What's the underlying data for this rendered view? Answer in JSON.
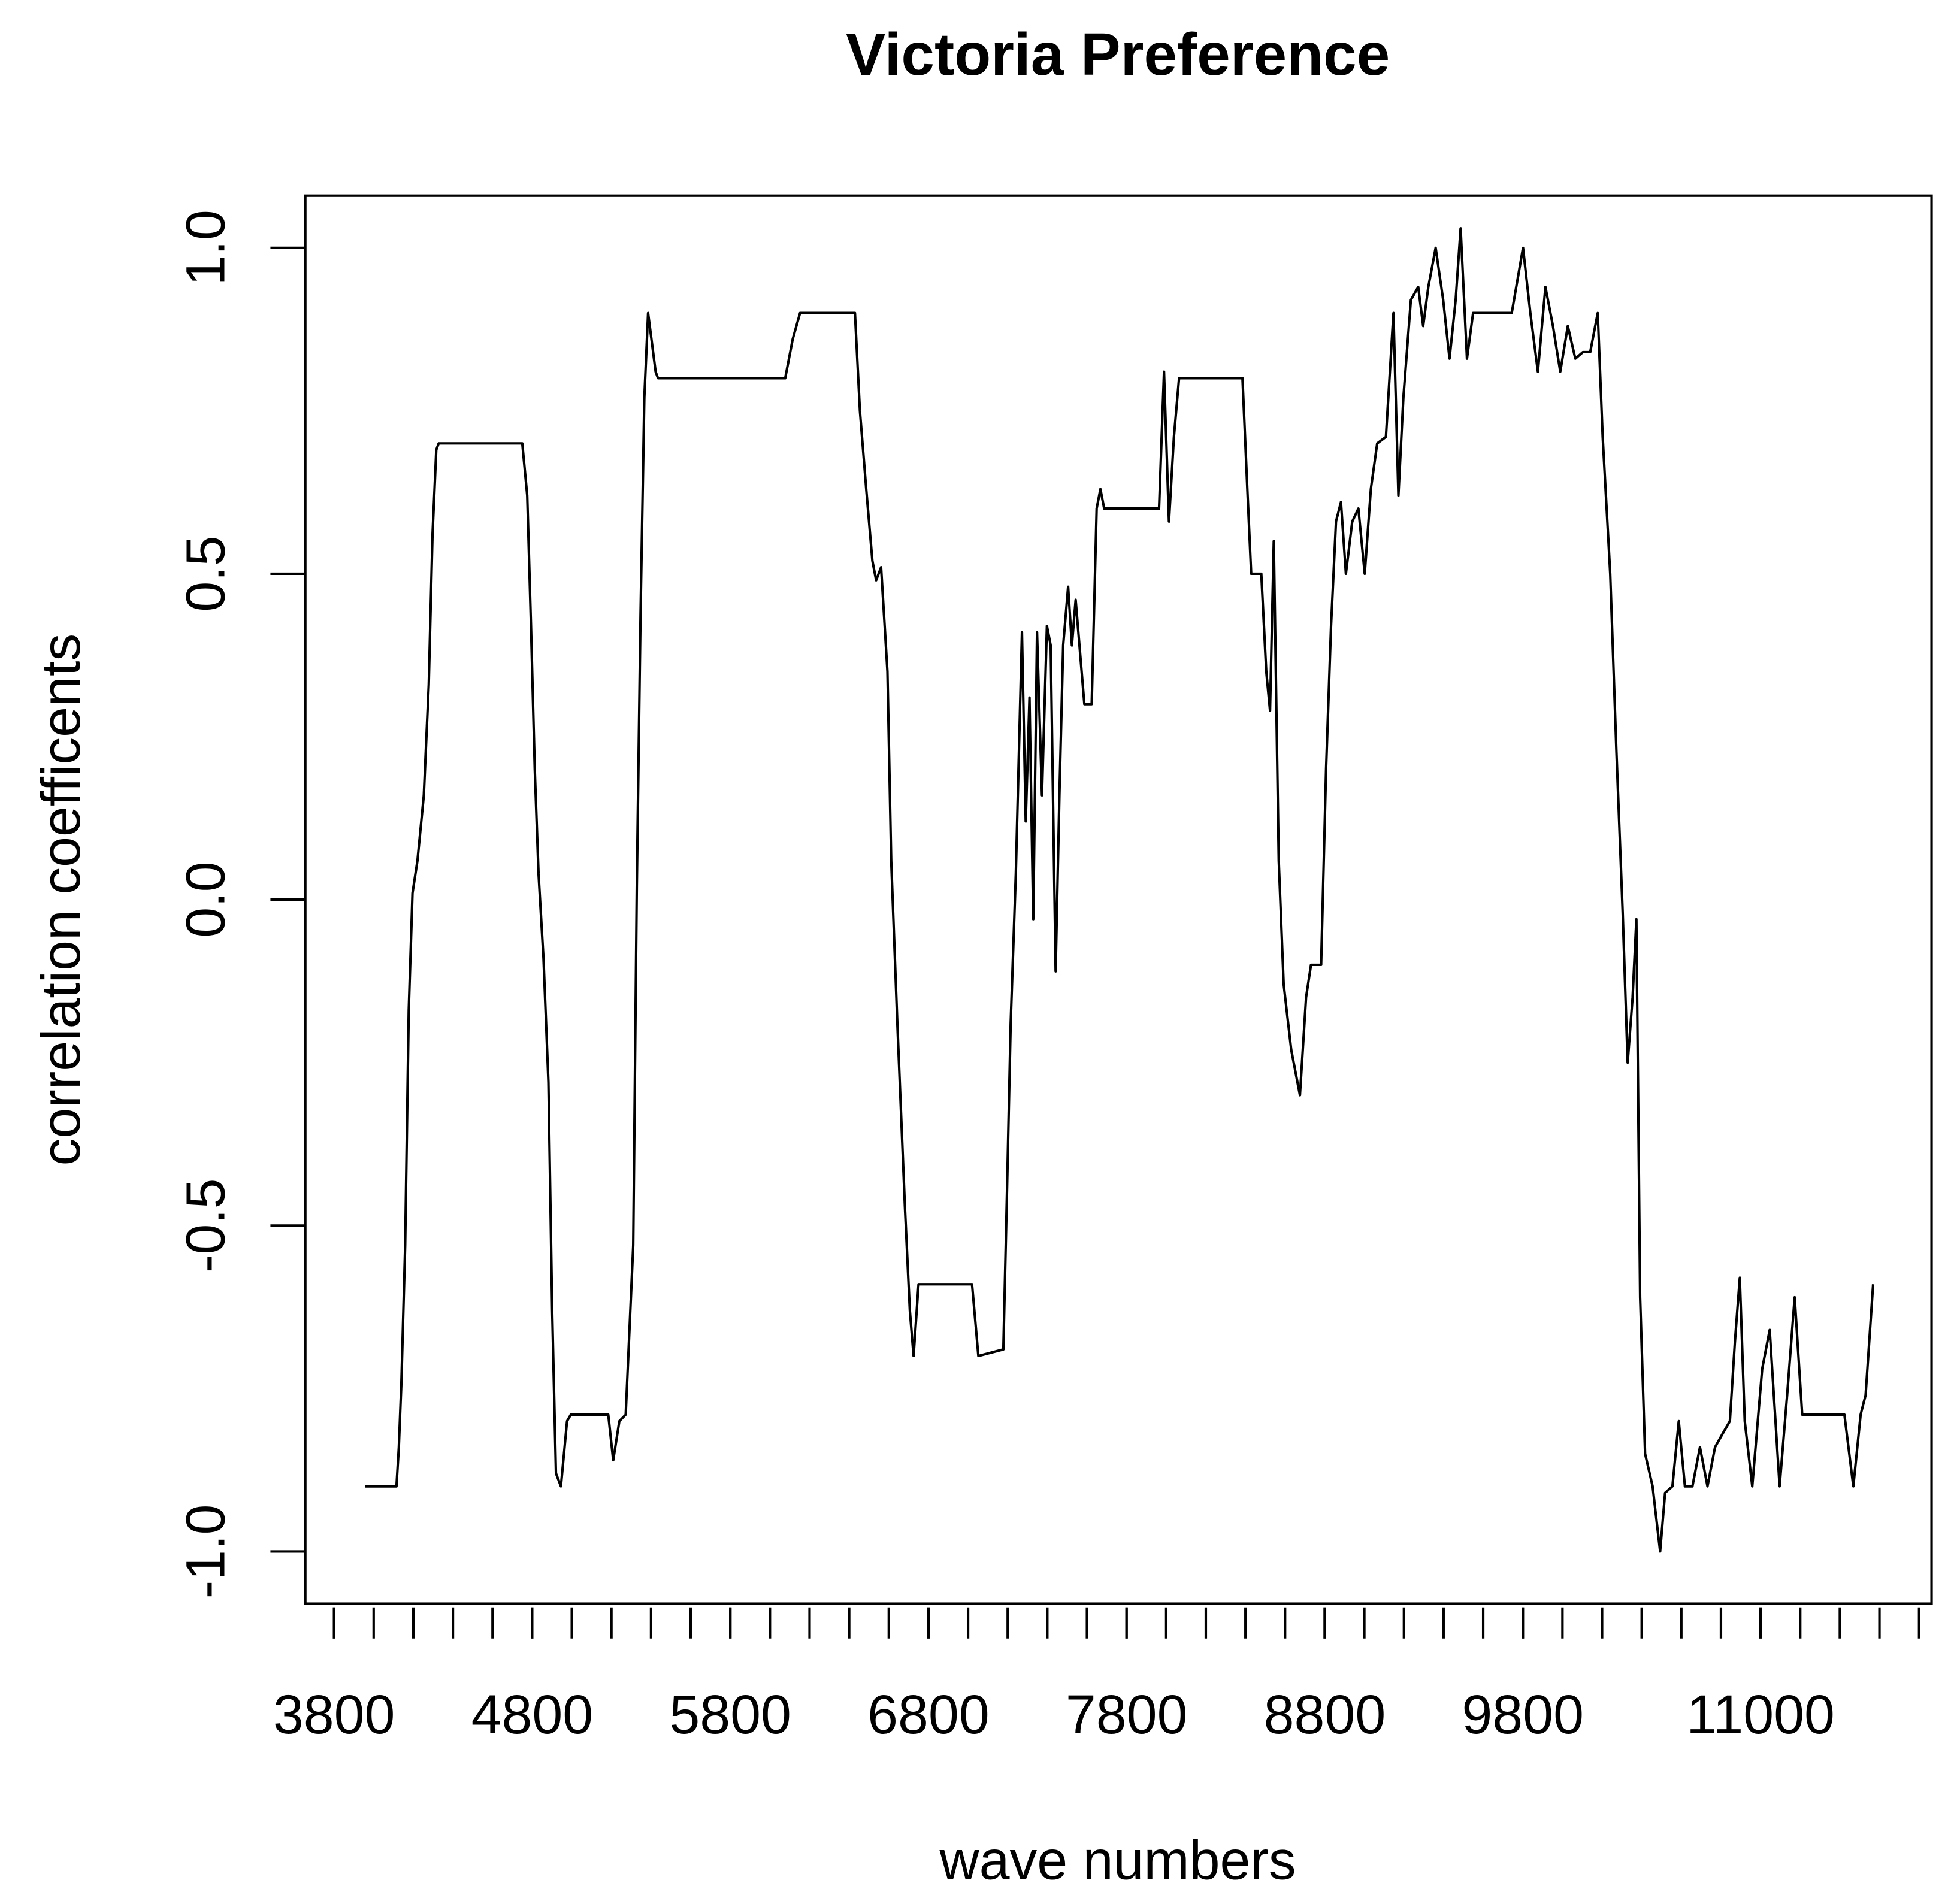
{
  "chart_data": {
    "type": "line",
    "title": "Victoria Preference",
    "x_label": "wave numbers",
    "y_label": "correlation coefficents",
    "xlim": [
      3655,
      11863
    ],
    "ylim": [
      -1.08,
      1.08
    ],
    "xticks": [
      3800,
      4800,
      5800,
      6800,
      7800,
      8800,
      9800,
      11000
    ],
    "x_minor_tick_step": 200,
    "yticks": [
      {
        "value": -1,
        "label": "-1.0"
      },
      -0.5,
      {
        "value": 0,
        "label": "0.0"
      },
      0.5,
      {
        "value": 1,
        "label": "1.0"
      }
    ],
    "grid": false,
    "color": "#000000",
    "x": [
      3957,
      4115,
      4127,
      4140,
      4159,
      4177,
      4196,
      4221,
      4253,
      4278,
      4297,
      4316,
      4328,
      4750,
      4775,
      4794,
      4813,
      4832,
      4857,
      4882,
      4901,
      4920,
      4945,
      4976,
      4995,
      5184,
      5209,
      5240,
      5272,
      5310,
      5328,
      5347,
      5366,
      5385,
      5423,
      5435,
      6077,
      6115,
      6152,
      6429,
      6454,
      6486,
      6517,
      6536,
      6561,
      6593,
      6612,
      6643,
      6681,
      6706,
      6725,
      6750,
      7020,
      7052,
      7178,
      7197,
      7215,
      7241,
      7272,
      7291,
      7310,
      7329,
      7348,
      7373,
      7398,
      7417,
      7442,
      7461,
      7480,
      7505,
      7524,
      7543,
      7587,
      7624,
      7649,
      7668,
      7687,
      7964,
      7989,
      8014,
      8039,
      8065,
      8385,
      8411,
      8429,
      8480,
      8505,
      8524,
      8543,
      8568,
      8593,
      8631,
      8675,
      8706,
      8731,
      8782,
      8807,
      8832,
      8857,
      8882,
      8907,
      8939,
      8970,
      9002,
      9033,
      9065,
      9109,
      9147,
      9172,
      9197,
      9235,
      9272,
      9297,
      9323,
      9360,
      9398,
      9430,
      9461,
      9486,
      9518,
      9549,
      9744,
      9801,
      9838,
      9876,
      9914,
      9952,
      9989,
      10027,
      10065,
      10103,
      10140,
      10178,
      10203,
      10241,
      10272,
      10304,
      10329,
      10354,
      10373,
      10392,
      10417,
      10455,
      10493,
      10518,
      10555,
      10587,
      10618,
      10656,
      10694,
      10732,
      10770,
      10807,
      10845,
      10870,
      10895,
      10920,
      10958,
      11008,
      11046,
      11096,
      11134,
      11172,
      11210,
      11423,
      11468,
      11505,
      11530,
      11568
    ],
    "values": [
      -0.9,
      -0.9,
      -0.84,
      -0.74,
      -0.53,
      -0.17,
      0.01,
      0.06,
      0.16,
      0.33,
      0.56,
      0.69,
      0.7,
      0.7,
      0.62,
      0.42,
      0.2,
      0.04,
      -0.09,
      -0.28,
      -0.63,
      -0.88,
      -0.9,
      -0.8,
      -0.79,
      -0.79,
      -0.86,
      -0.8,
      -0.79,
      -0.53,
      0.02,
      0.44,
      0.77,
      0.9,
      0.81,
      0.8,
      0.8,
      0.86,
      0.9,
      0.9,
      0.75,
      0.63,
      0.52,
      0.49,
      0.51,
      0.35,
      0.06,
      -0.19,
      -0.47,
      -0.63,
      -0.7,
      -0.59,
      -0.59,
      -0.7,
      -0.69,
      -0.44,
      -0.19,
      0.04,
      0.41,
      0.12,
      0.31,
      -0.03,
      0.41,
      0.16,
      0.42,
      0.39,
      -0.11,
      0.16,
      0.39,
      0.48,
      0.39,
      0.46,
      0.3,
      0.3,
      0.6,
      0.63,
      0.6,
      0.6,
      0.81,
      0.58,
      0.71,
      0.8,
      0.8,
      0.62,
      0.5,
      0.5,
      0.35,
      0.29,
      0.55,
      0.06,
      -0.13,
      -0.23,
      -0.3,
      -0.15,
      -0.1,
      -0.1,
      0.2,
      0.42,
      0.58,
      0.61,
      0.5,
      0.58,
      0.6,
      0.5,
      0.63,
      0.7,
      0.71,
      0.9,
      0.62,
      0.77,
      0.92,
      0.94,
      0.88,
      0.94,
      1.0,
      0.92,
      0.83,
      0.92,
      1.03,
      0.83,
      0.9,
      0.9,
      1.0,
      0.9,
      0.81,
      0.94,
      0.88,
      0.81,
      0.88,
      0.83,
      0.84,
      0.84,
      0.9,
      0.71,
      0.5,
      0.23,
      -0.02,
      -0.25,
      -0.15,
      -0.03,
      -0.61,
      -0.85,
      -0.9,
      -1.0,
      -0.91,
      -0.9,
      -0.8,
      -0.9,
      -0.9,
      -0.84,
      -0.9,
      -0.84,
      -0.82,
      -0.8,
      -0.68,
      -0.58,
      -0.8,
      -0.9,
      -0.72,
      -0.66,
      -0.9,
      -0.76,
      -0.61,
      -0.79,
      -0.79,
      -0.9,
      -0.79,
      -0.76,
      -0.59
    ]
  }
}
